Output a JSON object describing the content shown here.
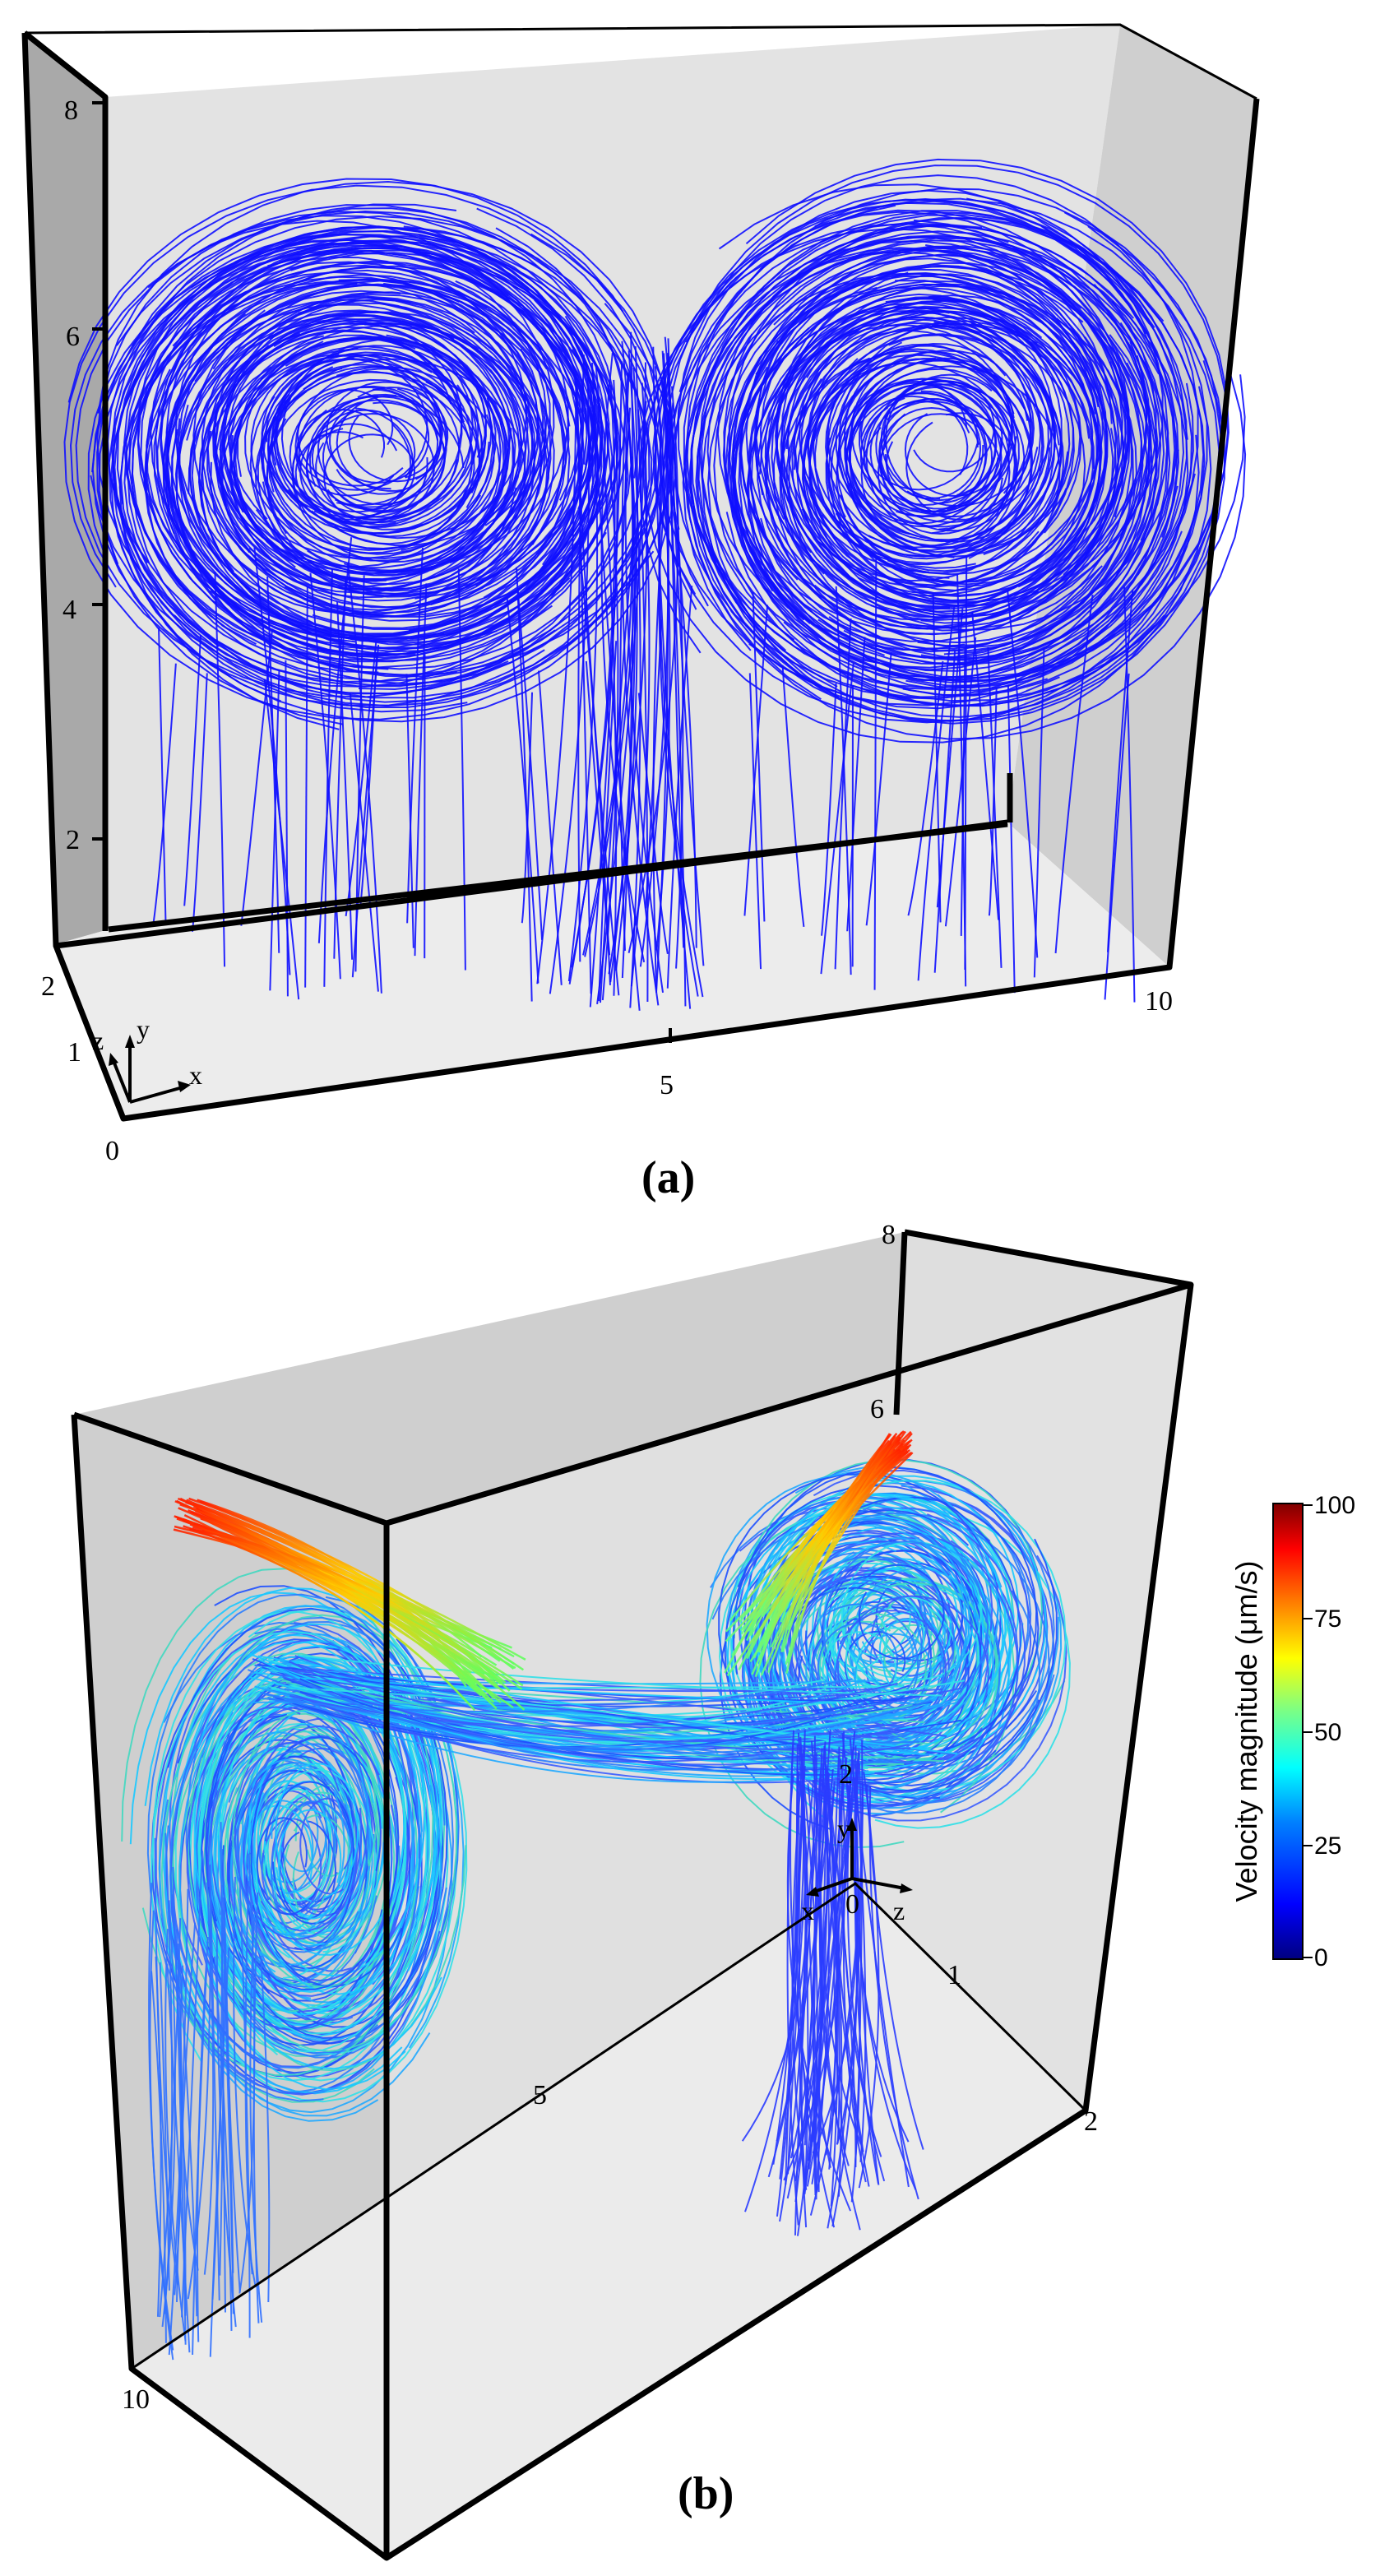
{
  "panel_a": {
    "label": "(a)",
    "ticks_y": [
      "8",
      "6",
      "4",
      "2"
    ],
    "ticks_z": [
      "2",
      "1"
    ],
    "tick_origin": "0",
    "tick_x_mid": "5",
    "tick_x_end": "10",
    "axis_x": "x",
    "axis_y": "y",
    "axis_z": "z",
    "streamline_color": "#1010ff"
  },
  "panel_b": {
    "label": "(b)",
    "tick_y_top": "8",
    "tick_y_6": "6",
    "tick_y_2": "2",
    "tick_origin": "0",
    "tick_z_1": "1",
    "tick_z_2": "2",
    "tick_x_mid": "5",
    "tick_x_end": "10",
    "axis_x": "x",
    "axis_y": "y",
    "axis_z": "z",
    "colorbar": {
      "title": "Velocity magnitude (μm/s)",
      "ticks": [
        "100",
        "75",
        "50",
        "25",
        "0"
      ],
      "range": [
        0,
        100
      ],
      "colors": [
        "#00007f",
        "#0000ff",
        "#0080ff",
        "#00ffff",
        "#80ff80",
        "#ffff00",
        "#ff8000",
        "#ff0000",
        "#7f0000"
      ]
    }
  }
}
